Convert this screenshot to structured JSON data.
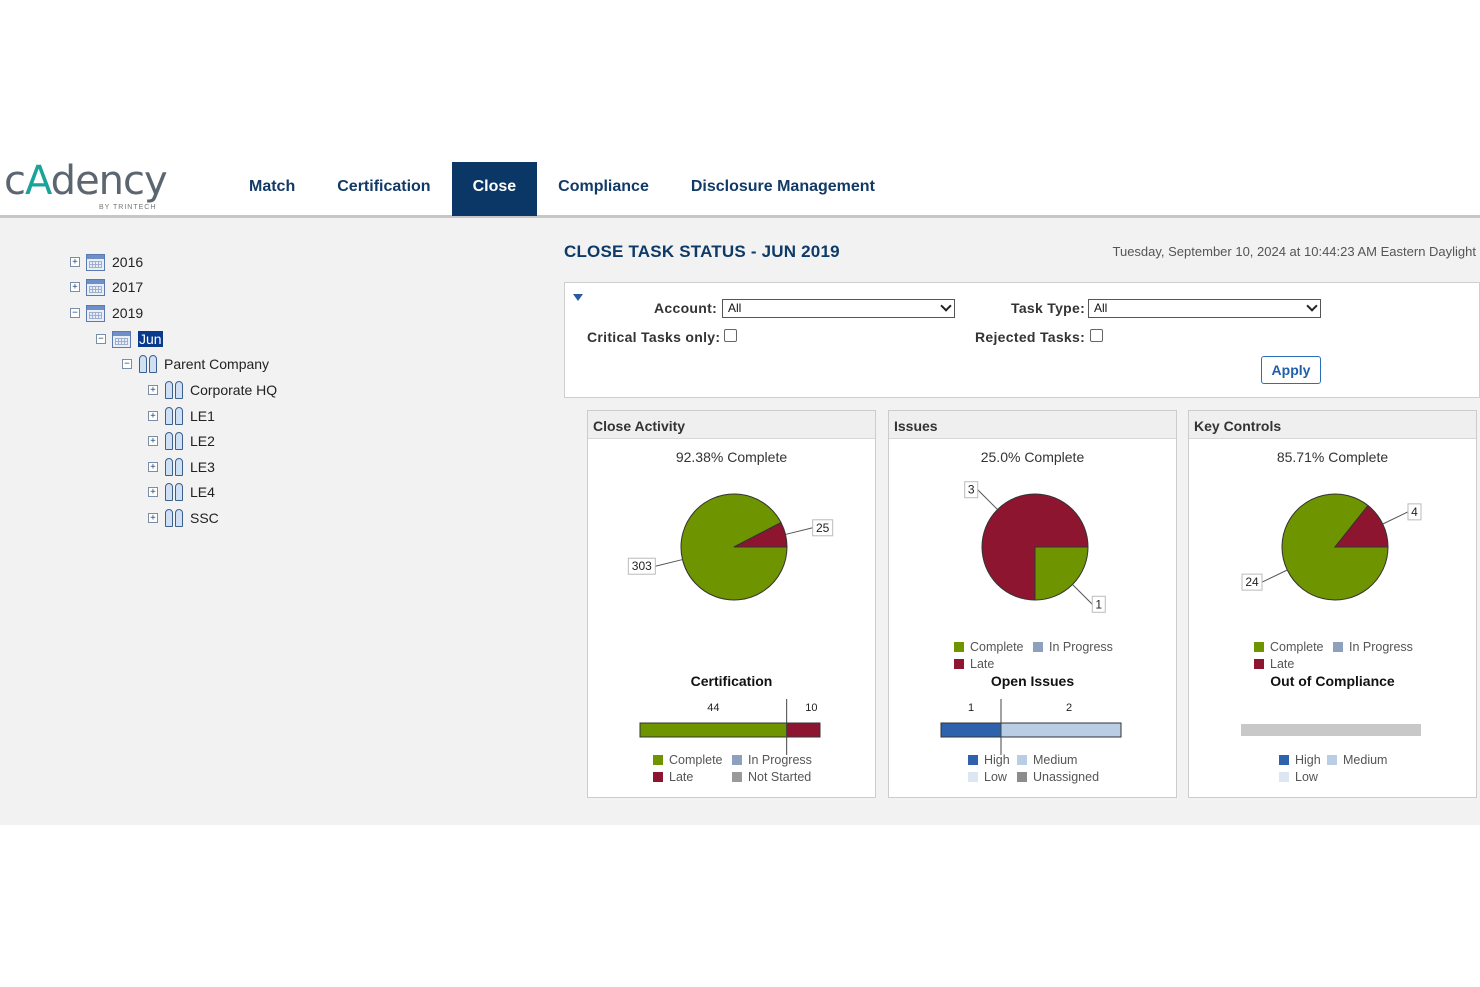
{
  "brand": {
    "logo_main": "cAdency",
    "logo_sub": "BY TRINTECH"
  },
  "nav": {
    "tabs": [
      {
        "label": "Match",
        "active": false
      },
      {
        "label": "Certification",
        "active": false
      },
      {
        "label": "Close",
        "active": true
      },
      {
        "label": "Compliance",
        "active": false
      },
      {
        "label": "Disclosure Management",
        "active": false
      }
    ]
  },
  "tree": {
    "years": [
      "2016",
      "2017",
      "2019"
    ],
    "month": "Jun",
    "root": "Parent Company",
    "entities": [
      "Corporate HQ",
      "LE1",
      "LE2",
      "LE3",
      "LE4",
      "SSC"
    ]
  },
  "main": {
    "title": "CLOSE TASK STATUS - JUN 2019",
    "datetime": "Tuesday, September 10, 2024 at 10:44:23 AM Eastern Daylight",
    "filters": {
      "account_label": "Account:",
      "account_value": "All",
      "task_type_label": "Task Type:",
      "task_type_value": "All",
      "critical_label": "Critical Tasks only:",
      "rejected_label": "Rejected Tasks:",
      "apply_label": "Apply"
    }
  },
  "colors": {
    "complete": "#6e9400",
    "late": "#8e1530",
    "in_progress": "#8da1bd",
    "not_started": "#999999",
    "high": "#2f62ad",
    "medium": "#b9cde5",
    "low": "#dde7f3",
    "unassigned": "#8c8c8c",
    "navy": "#0a3766"
  },
  "panels": {
    "close_activity": {
      "title": "Close Activity",
      "pct_label": "92.38% Complete",
      "pie_legend": [],
      "bar_title": "Certification",
      "bar_labels": [
        "44",
        "10"
      ],
      "bar_legend": [
        "Complete",
        "In Progress",
        "Late",
        "Not Started"
      ]
    },
    "issues": {
      "title": "Issues",
      "pct_label": "25.0% Complete",
      "pie_legend": [
        "Complete",
        "In Progress",
        "Late"
      ],
      "bar_title": "Open Issues",
      "bar_labels": [
        "1",
        "2"
      ],
      "bar_legend": [
        "High",
        "Medium",
        "Low",
        "Unassigned"
      ]
    },
    "key_controls": {
      "title": "Key Controls",
      "pct_label": "85.71% Complete",
      "pie_legend": [
        "Complete",
        "In Progress",
        "Late"
      ],
      "bar_title": "Out of Compliance",
      "bar_labels": [],
      "bar_legend": [
        "High",
        "Medium",
        "Low"
      ]
    }
  },
  "chart_data": [
    {
      "type": "pie",
      "title": "92.38% Complete",
      "labels": [
        "Complete",
        "Late"
      ],
      "values": [
        303,
        25
      ]
    },
    {
      "type": "bar",
      "title": "Certification",
      "categories": [
        "Certification"
      ],
      "series": [
        {
          "name": "Complete",
          "values": [
            44
          ]
        },
        {
          "name": "Late",
          "values": [
            10
          ]
        }
      ]
    },
    {
      "type": "pie",
      "title": "25.0% Complete",
      "labels": [
        "Late",
        "Complete"
      ],
      "values": [
        3,
        1
      ]
    },
    {
      "type": "bar",
      "title": "Open Issues",
      "categories": [
        "Open Issues"
      ],
      "series": [
        {
          "name": "High",
          "values": [
            1
          ]
        },
        {
          "name": "Medium",
          "values": [
            2
          ]
        }
      ]
    },
    {
      "type": "pie",
      "title": "85.71% Complete",
      "labels": [
        "Complete",
        "Late"
      ],
      "values": [
        24,
        4
      ]
    },
    {
      "type": "bar",
      "title": "Out of Compliance",
      "categories": [
        "Out of Compliance"
      ],
      "series": []
    }
  ]
}
